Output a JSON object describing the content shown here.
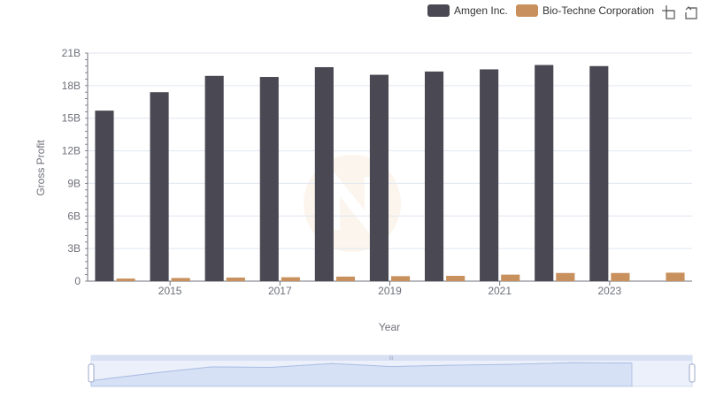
{
  "chart_data": {
    "type": "bar",
    "title": "",
    "xlabel": "Year",
    "ylabel": "Gross Profit",
    "x": [
      2014,
      2015,
      2016,
      2017,
      2018,
      2019,
      2020,
      2021,
      2022,
      2023,
      2024
    ],
    "x_tick_labels": [
      "2015",
      "2017",
      "2019",
      "2021",
      "2023"
    ],
    "y_tick_labels": [
      "0",
      "3B",
      "6B",
      "9B",
      "12B",
      "15B",
      "18B",
      "21B"
    ],
    "ylim": [
      0,
      21000000000
    ],
    "grid": true,
    "legend_position": "top-right",
    "series": [
      {
        "name": "Amgen Inc.",
        "color": "#4a4953",
        "values": [
          15700000000,
          17400000000,
          18900000000,
          18800000000,
          19700000000,
          19000000000,
          19300000000,
          19500000000,
          19900000000,
          19800000000,
          null
        ]
      },
      {
        "name": "Bio-Techne Corporation",
        "color": "#c8905c",
        "values": [
          240000000,
          290000000,
          330000000,
          360000000,
          420000000,
          460000000,
          490000000,
          600000000,
          750000000,
          750000000,
          780000000
        ]
      }
    ]
  },
  "toolbar": {
    "zoom_icon": "zoom-rect-icon",
    "restore_icon": "restore-icon"
  },
  "datazoom": {
    "fill_color": "#dbe4fb",
    "border_color": "#a6b5de",
    "handle_label": "III"
  }
}
